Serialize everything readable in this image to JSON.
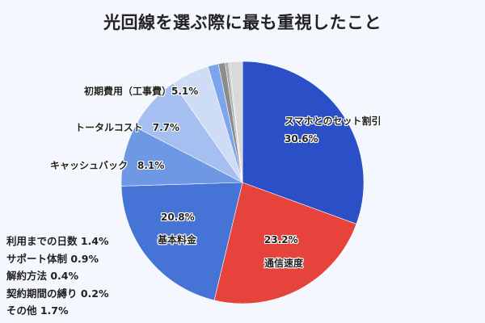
{
  "title": "光回線を選ぶ際に最も重視したこと",
  "chart_data": {
    "type": "pie",
    "title": "光回線を選ぶ際に最も重視したこと",
    "start_angle_deg": 0,
    "direction": "clockwise",
    "slices": [
      {
        "label": "スマホとのセット割引",
        "value": 30.6,
        "color": "#2b4fc7"
      },
      {
        "label": "通信速度",
        "value": 23.2,
        "color": "#e5433b"
      },
      {
        "label": "基本料金",
        "value": 20.8,
        "color": "#4673d6"
      },
      {
        "label": "キャッシュバック",
        "value": 8.1,
        "color": "#6e97e4"
      },
      {
        "label": "トータルコスト",
        "value": 7.7,
        "color": "#a5bff0"
      },
      {
        "label": "初期費用（工事費）",
        "value": 5.1,
        "color": "#cfdcf6"
      },
      {
        "label": "利用までの日数",
        "value": 1.4,
        "color": "#7fa4ee"
      },
      {
        "label": "サポート体制",
        "value": 0.9,
        "color": "#8c8c8c"
      },
      {
        "label": "解約方法",
        "value": 0.4,
        "color": "#a9a9a9"
      },
      {
        "label": "契約期間の縛り",
        "value": 0.2,
        "color": "#bdbdbd"
      },
      {
        "label": "その他",
        "value": 1.7,
        "color": "#d9d9d9"
      }
    ]
  },
  "labels": {
    "smartphone_set": {
      "name": "スマホとのセット割引",
      "pct": "30.6%"
    },
    "speed": {
      "name": "通信速度",
      "pct": "23.2%"
    },
    "base_fee": {
      "name": "基本料金",
      "pct": "20.8%"
    },
    "cashback": "キャッシュバック　8.1%",
    "total_cost": "トータルコスト　7.7%",
    "initial_cost": "初期費用（工事費）5.1%"
  },
  "small_items": [
    "利用までの日数 1.4%",
    "サポート体制 0.9%",
    "解約方法 0.4%",
    "契約期間の縛り 0.2%",
    "その他 1.7%"
  ]
}
